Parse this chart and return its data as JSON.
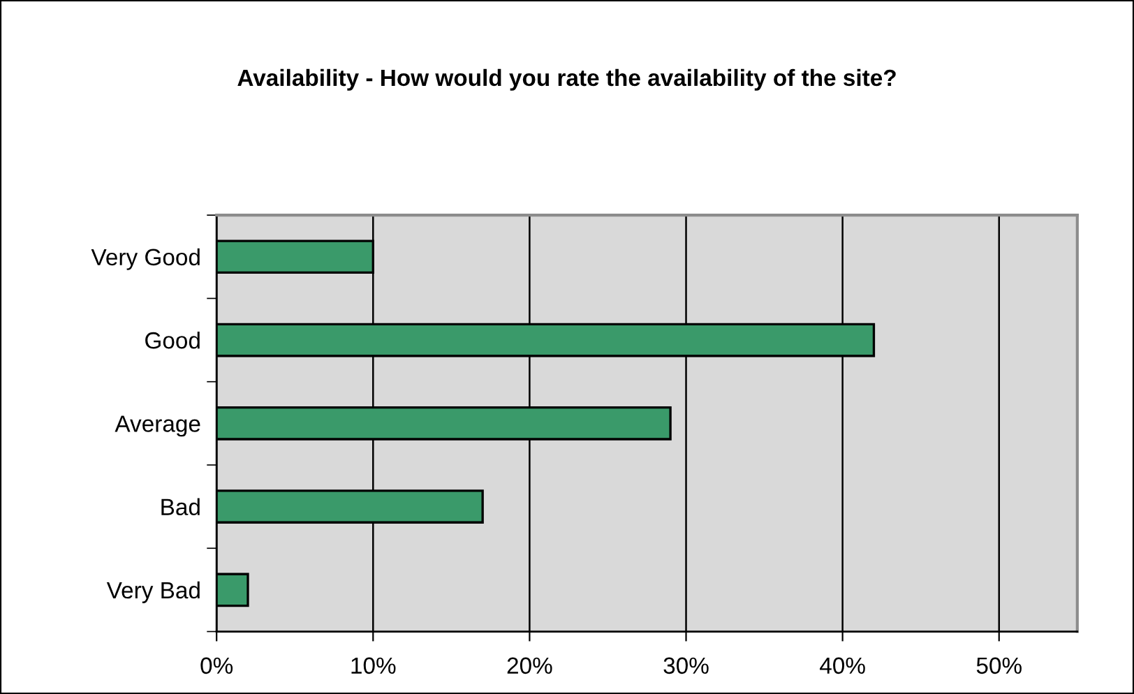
{
  "chart_data": {
    "type": "bar",
    "orientation": "horizontal",
    "title": "Availability - How would you rate the availability of the site?",
    "categories": [
      "Very Good",
      "Good",
      "Average",
      "Bad",
      "Very Bad"
    ],
    "values": [
      10,
      42,
      29,
      17,
      2
    ],
    "color": "#3a9a6a",
    "xlim": [
      0,
      55
    ],
    "xticks": [
      {
        "value": 0,
        "label": "0%"
      },
      {
        "value": 10,
        "label": "10%"
      },
      {
        "value": 20,
        "label": "20%"
      },
      {
        "value": 30,
        "label": "30%"
      },
      {
        "value": 40,
        "label": "40%"
      },
      {
        "value": 50,
        "label": "50%"
      }
    ],
    "grid": "x"
  }
}
